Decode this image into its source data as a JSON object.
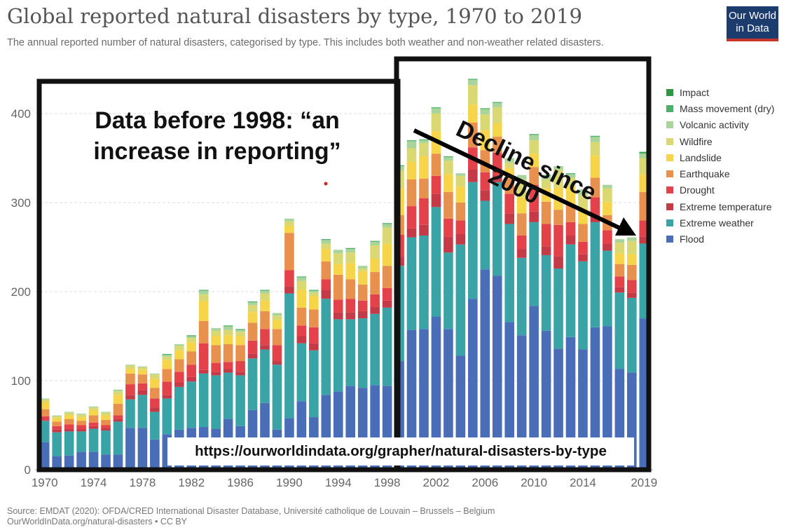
{
  "header": {
    "title": "Global reported natural disasters by type, 1970 to 2019",
    "subtitle": "The annual reported number of natural disasters, categorised by type. This includes both weather and non-weather related disasters."
  },
  "logo": {
    "line1": "Our World",
    "line2": "in Data"
  },
  "annotations": {
    "left_text": "Data before 1998: “an increase in reporting”",
    "right_text": "Decline since 2000",
    "url": "https://ourworldindata.org/grapher/natural-disasters-by-type"
  },
  "footer": {
    "source": "Source: EMDAT (2020): OFDA/CRED International Disaster Database, Université catholique de Louvain – Brussels – Belgium",
    "license": "OurWorldInData.org/natural-disasters • CC BY"
  },
  "colors": {
    "Flood": "#4a6db8",
    "Extreme weather": "#3aa3a6",
    "Drought": "#e3424a",
    "Extreme temperature": "#c43b47",
    "Earthquake": "#e8914f",
    "Landslide": "#f7d54a",
    "Wildfire": "#d9d873",
    "Volcanic activity": "#a9d59c",
    "Mass movement (dry)": "#4caf68",
    "Impact": "#2e9640",
    "frame": "#111111"
  },
  "chart_data": {
    "type": "bar",
    "stacked": true,
    "title": "Global reported natural disasters by type, 1970 to 2019",
    "x": [
      1970,
      1971,
      1972,
      1973,
      1974,
      1975,
      1976,
      1977,
      1978,
      1979,
      1980,
      1981,
      1982,
      1983,
      1984,
      1985,
      1986,
      1987,
      1988,
      1989,
      1990,
      1991,
      1992,
      1993,
      1994,
      1995,
      1996,
      1997,
      1998,
      1999,
      2000,
      2001,
      2002,
      2003,
      2004,
      2005,
      2006,
      2007,
      2008,
      2009,
      2010,
      2011,
      2012,
      2013,
      2014,
      2015,
      2016,
      2017,
      2018,
      2019
    ],
    "x_tick_labels": [
      "1970",
      "1974",
      "1978",
      "1982",
      "1986",
      "1990",
      "1994",
      "1998",
      "2002",
      "2006",
      "2010",
      "2014",
      "2019"
    ],
    "y_ticks": [
      0,
      100,
      200,
      300,
      400
    ],
    "ylim": [
      0,
      430
    ],
    "grid": true,
    "legend_position": "right",
    "series": [
      {
        "name": "Flood",
        "values": [
          31,
          15,
          16,
          20,
          20,
          17,
          17,
          47,
          47,
          34,
          40,
          45,
          47,
          48,
          46,
          57,
          49,
          67,
          75,
          45,
          58,
          77,
          59,
          84,
          88,
          94,
          92,
          95,
          94,
          122,
          157,
          158,
          172,
          158,
          128,
          192,
          225,
          218,
          166,
          151,
          184,
          156,
          136,
          149,
          135,
          160,
          161,
          113,
          109,
          170
        ]
      },
      {
        "name": "Extreme weather",
        "values": [
          24,
          27,
          27,
          23,
          26,
          27,
          37,
          32,
          37,
          31,
          40,
          48,
          52,
          60,
          60,
          52,
          57,
          58,
          60,
          73,
          140,
          65,
          75,
          108,
          81,
          75,
          78,
          80,
          88,
          107,
          104,
          105,
          123,
          86,
          125,
          131,
          77,
          105,
          110,
          87,
          94,
          85,
          90,
          104,
          99,
          118,
          85,
          86,
          84,
          84
        ]
      },
      {
        "name": "Extreme temperature",
        "values": [
          0,
          3,
          3,
          3,
          3,
          3,
          3,
          5,
          5,
          5,
          4,
          5,
          5,
          4,
          4,
          4,
          4,
          5,
          5,
          4,
          8,
          8,
          8,
          10,
          8,
          8,
          8,
          8,
          8,
          10,
          10,
          12,
          15,
          18,
          12,
          14,
          12,
          8,
          12,
          10,
          12,
          10,
          14,
          10,
          8,
          8,
          8,
          6,
          6,
          8
        ]
      },
      {
        "name": "Drought",
        "values": [
          5,
          4,
          5,
          4,
          4,
          3,
          4,
          12,
          8,
          10,
          15,
          12,
          14,
          30,
          10,
          8,
          12,
          15,
          18,
          18,
          18,
          12,
          18,
          12,
          14,
          15,
          12,
          14,
          14,
          25,
          25,
          30,
          20,
          20,
          15,
          25,
          20,
          25,
          22,
          15,
          30,
          25,
          35,
          15,
          14,
          20,
          15,
          12,
          14,
          18
        ]
      },
      {
        "name": "Earthquake",
        "values": [
          8,
          5,
          6,
          5,
          8,
          6,
          13,
          12,
          10,
          12,
          14,
          14,
          15,
          25,
          20,
          20,
          18,
          20,
          20,
          18,
          42,
          20,
          20,
          20,
          28,
          22,
          18,
          25,
          25,
          22,
          30,
          22,
          25,
          30,
          20,
          28,
          25,
          18,
          17,
          25,
          20,
          25,
          17,
          20,
          20,
          22,
          17,
          14,
          17,
          32
        ]
      },
      {
        "name": "Landslide",
        "values": [
          8,
          4,
          4,
          4,
          6,
          5,
          10,
          5,
          5,
          10,
          10,
          10,
          10,
          22,
          10,
          10,
          10,
          12,
          12,
          10,
          8,
          20,
          15,
          14,
          12,
          18,
          15,
          15,
          25,
          30,
          20,
          25,
          25,
          20,
          18,
          20,
          22,
          15,
          12,
          18,
          15,
          15,
          25,
          20,
          18,
          25,
          15,
          12,
          12,
          20
        ]
      },
      {
        "name": "Wildfire",
        "values": [
          3,
          2,
          3,
          3,
          3,
          3,
          4,
          4,
          3,
          5,
          4,
          5,
          5,
          8,
          6,
          6,
          5,
          8,
          8,
          5,
          5,
          10,
          4,
          6,
          12,
          12,
          3,
          15,
          18,
          20,
          15,
          15,
          20,
          15,
          12,
          22,
          18,
          18,
          6,
          20,
          15,
          10,
          20,
          10,
          15,
          15,
          15,
          12,
          15,
          18
        ]
      },
      {
        "name": "Volcanic activity",
        "values": [
          1,
          1,
          1,
          1,
          1,
          1,
          2,
          1,
          1,
          1,
          2,
          2,
          2,
          4,
          3,
          4,
          2,
          3,
          3,
          3,
          3,
          4,
          2,
          4,
          4,
          4,
          3,
          4,
          4,
          5,
          8,
          3,
          6,
          4,
          3,
          6,
          6,
          5,
          5,
          5,
          6,
          4,
          4,
          4,
          6,
          6,
          4,
          4,
          4,
          5
        ]
      },
      {
        "name": "Mass movement (dry)",
        "values": [
          0,
          0,
          0,
          0,
          0,
          0,
          0,
          0,
          0,
          0,
          1,
          0,
          1,
          1,
          0,
          1,
          1,
          1,
          1,
          0,
          0,
          1,
          1,
          1,
          0,
          1,
          0,
          1,
          1,
          1,
          1,
          1,
          1,
          1,
          0,
          1,
          1,
          1,
          0,
          0,
          1,
          1,
          0,
          1,
          0,
          1,
          0,
          0,
          0,
          1
        ]
      },
      {
        "name": "Impact",
        "values": [
          0,
          0,
          0,
          0,
          0,
          0,
          0,
          0,
          0,
          0,
          0,
          0,
          0,
          0,
          0,
          0,
          0,
          0,
          0,
          0,
          0,
          0,
          0,
          0,
          0,
          0,
          0,
          0,
          0,
          0,
          0,
          0,
          0,
          0,
          0,
          0,
          0,
          0,
          0,
          0,
          0,
          0,
          0,
          0,
          0,
          0,
          0,
          0,
          0,
          1
        ]
      }
    ]
  }
}
